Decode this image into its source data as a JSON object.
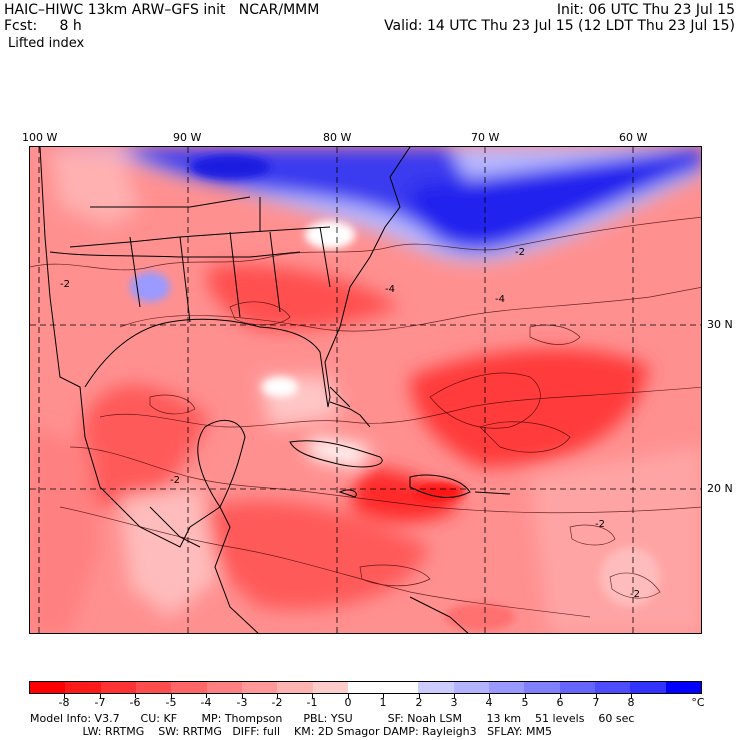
{
  "header": {
    "model": "HAIC–HIWC 13km ARW–GFS init   NCAR/MMM",
    "forecast": "Fcst:     8 h",
    "field": "Lifted index",
    "init": "Init: 06 UTC Thu 23 Jul 15",
    "valid": "Valid: 14 UTC Thu 23 Jul 15 (12 LDT Thu 23 Jul 15)"
  },
  "map": {
    "longitude_labels": [
      "100 W",
      "90 W",
      "80 W",
      "70 W",
      "60 W"
    ],
    "latitude_labels": [
      "30 N",
      "20 N"
    ],
    "contour_labels": [
      "-2",
      "-4",
      "-2",
      "-2",
      "-4",
      "-2",
      "-2"
    ]
  },
  "colorbar": {
    "tick_labels": [
      "-8",
      "-7",
      "-6",
      "-5",
      "-4",
      "-3",
      "-2",
      "-1",
      "0",
      "1",
      "2",
      "3",
      "4",
      "5",
      "6",
      "7",
      "8"
    ],
    "unit": "°C",
    "colors": [
      "#ff0000",
      "#ff1a1a",
      "#ff3333",
      "#ff4d4d",
      "#ff6666",
      "#ff8080",
      "#ff9999",
      "#ffb3b3",
      "#ffcccc",
      "#ffffff",
      "#ffffff",
      "#ccccff",
      "#b3b3ff",
      "#9999ff",
      "#8080ff",
      "#6666ff",
      "#4d4dff",
      "#3333ff",
      "#0000ff"
    ]
  },
  "footer": {
    "line1": "Model Info: V3.7      CU: KF       MP: Thompson      PBL: YSU          SF: Noah LSM       13 km    51 levels    60 sec",
    "line2": "               LW: RRTMG    SW: RRTMG   DIFF: full    KM: 2D Smagor DAMP: Rayleigh3   SFLAY: MM5"
  }
}
